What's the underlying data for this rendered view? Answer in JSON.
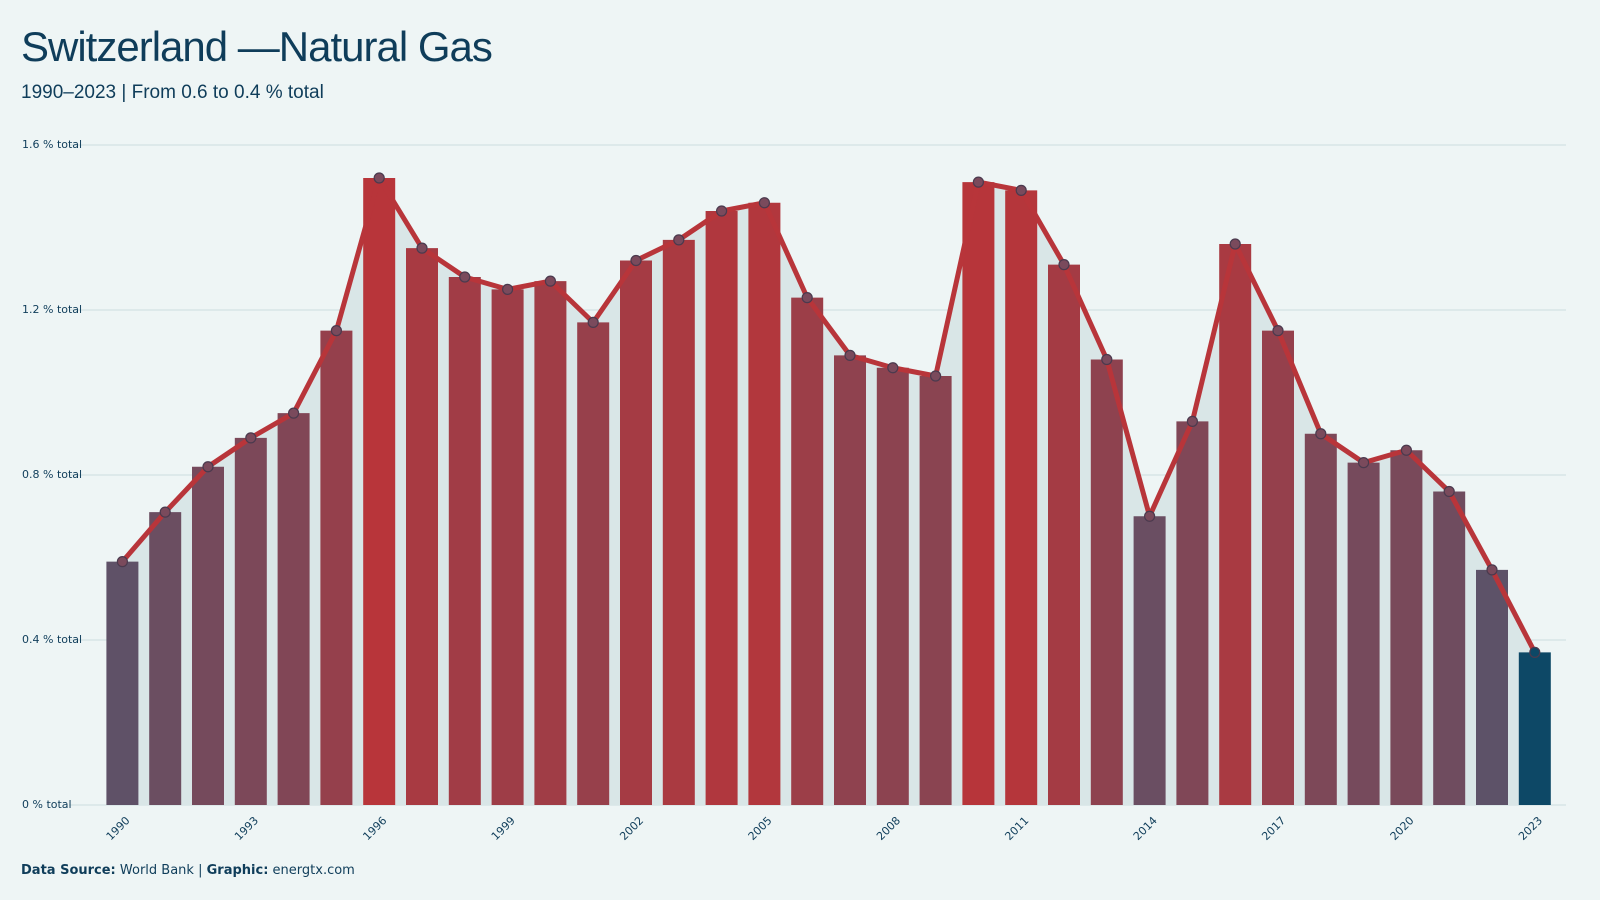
{
  "chart_data": {
    "type": "bar-line",
    "title": "Switzerland —Natural Gas",
    "subtitle": "1990–2023 | From 0.6 to 0.4 % total",
    "categories": [
      "1990",
      null,
      null,
      "1993",
      null,
      null,
      "1996",
      null,
      null,
      "1999",
      null,
      null,
      "2002",
      null,
      null,
      "2005",
      null,
      null,
      "2008",
      null,
      null,
      "2011",
      null,
      null,
      "2014",
      null,
      null,
      "2017",
      null,
      null,
      "2020",
      null,
      null,
      "2023"
    ],
    "values": [
      0.59,
      0.71,
      0.82,
      0.89,
      0.95,
      1.15,
      1.52,
      1.35,
      1.28,
      1.25,
      1.27,
      1.17,
      1.32,
      1.37,
      1.44,
      1.46,
      1.23,
      1.09,
      1.06,
      1.04,
      1.51,
      1.49,
      1.31,
      1.08,
      0.7,
      0.93,
      1.36,
      1.15,
      0.9,
      0.83,
      0.86,
      0.76,
      0.57,
      0.37
    ],
    "ylim": [
      0,
      1.6
    ],
    "yticks": [
      {
        "value": 0,
        "label": "0 % total"
      },
      {
        "value": 0.4,
        "label": "0.4 % total"
      },
      {
        "value": 0.8,
        "label": "0.8 % total"
      },
      {
        "value": 1.2,
        "label": "1.2 % total"
      },
      {
        "value": 1.6,
        "label": "1.6 % total"
      }
    ],
    "grid": true,
    "color_low": "#4a5872",
    "color_high": "#b8353a",
    "highlight_color": "#0d4866",
    "line_color": "#b8353a",
    "source_label": "Data Source:",
    "source": "World Bank",
    "separator": "|",
    "graphic_label": "Graphic:",
    "graphic": "energtx.com"
  }
}
